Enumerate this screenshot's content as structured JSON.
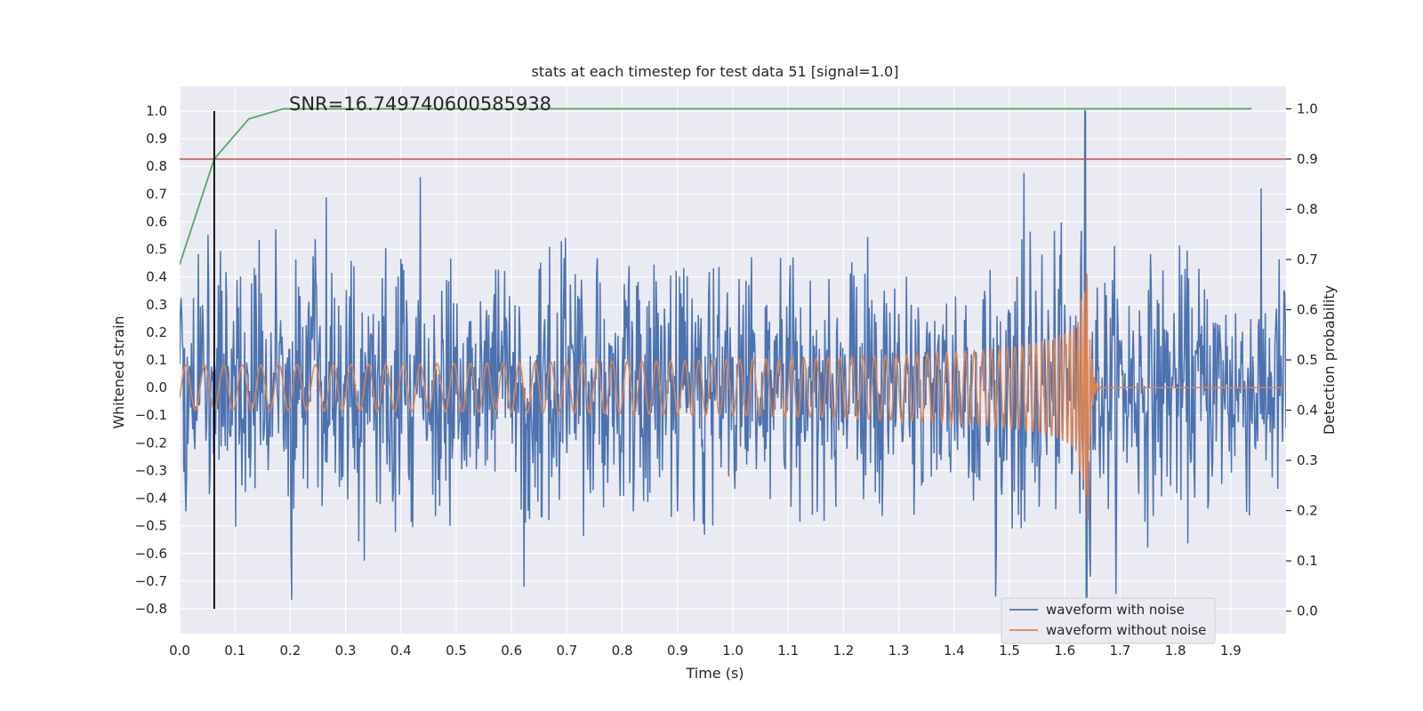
{
  "chart_data": {
    "type": "line",
    "title": "stats at each timestep for test data 51 [signal=1.0]",
    "annotation": "SNR=16.749740600585938",
    "xlabel": "Time (s)",
    "ylabel": "Whitened strain",
    "y2label": "Detection probability",
    "xlim": [
      0.0,
      2.0
    ],
    "ylim": [
      -0.89,
      1.09
    ],
    "y2lim": [
      -0.045,
      1.045
    ],
    "xticks": [
      "0.0",
      "0.1",
      "0.2",
      "0.3",
      "0.4",
      "0.5",
      "0.6",
      "0.7",
      "0.8",
      "0.9",
      "1.0",
      "1.1",
      "1.2",
      "1.3",
      "1.4",
      "1.5",
      "1.6",
      "1.7",
      "1.8",
      "1.9"
    ],
    "yticks": [
      "1.0",
      "0.9",
      "0.8",
      "0.7",
      "0.6",
      "0.5",
      "0.4",
      "0.3",
      "0.2",
      "0.1",
      "0.0",
      "−0.1",
      "−0.2",
      "−0.3",
      "−0.4",
      "−0.5",
      "−0.6",
      "−0.7",
      "−0.8"
    ],
    "y2ticks": [
      "1.0",
      "0.9",
      "0.8",
      "0.7",
      "0.6",
      "0.5",
      "0.4",
      "0.3",
      "0.2",
      "0.1",
      "0.0"
    ],
    "grid": true,
    "legend_position": "bottom-right",
    "series": [
      {
        "name": "waveform with noise",
        "color": "#4c72b0",
        "axis": "left",
        "description": "whitened strain with noise, dense random trace",
        "x_range": [
          0.0,
          2.0
        ],
        "sample_count": 1600,
        "approx_std": 0.22,
        "peak": {
          "x": 1.637,
          "y": 1.0
        },
        "trough": {
          "x": 1.637,
          "y": -0.84
        }
      },
      {
        "name": "waveform without noise",
        "color": "#dd8452",
        "axis": "left",
        "description": "chirp signal; amplitude ~0.08 growing to ~0.3 near merger at 1.64 s, then ringdown to 0",
        "merger_time": 1.645,
        "start_amplitude": 0.08,
        "peak_amplitude": 0.42
      },
      {
        "name": "detection probability",
        "color": "#55a868",
        "axis": "right",
        "x": [
          0.0,
          0.0625,
          0.125,
          0.1875,
          0.25,
          0.5,
          1.0,
          1.5,
          1.9375
        ],
        "y": [
          0.69,
          0.9,
          0.98,
          1.0,
          1.0,
          1.0,
          1.0,
          1.0,
          1.0
        ]
      }
    ],
    "threshold": {
      "axis": "right",
      "y": 0.9,
      "color": "#c44e52"
    },
    "vline": {
      "x": 0.0625,
      "y_from": -0.8,
      "y_to": 1.0,
      "color": "#000000"
    }
  }
}
